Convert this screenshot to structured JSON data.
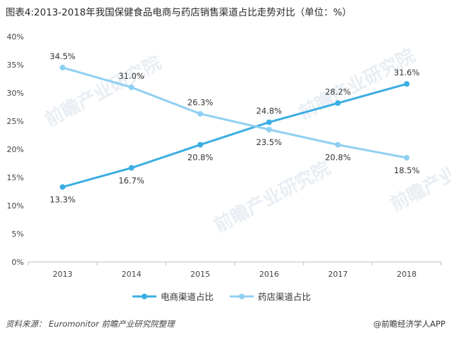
{
  "title": "图表4:2013-2018年我国保健食品电商与药店销售渠道占比走势对比（单位：%）",
  "source": "资料来源： Euromonitor  前瞻产业研究院整理",
  "brand": "@前瞻经济学人APP",
  "watermark": "前瞻产业研究院",
  "chart_data": {
    "type": "line",
    "categories": [
      "2013",
      "2014",
      "2015",
      "2016",
      "2017",
      "2018"
    ],
    "ylim": [
      0,
      40
    ],
    "yticks": [
      0,
      5,
      10,
      15,
      20,
      25,
      30,
      35,
      40
    ],
    "ytick_labels": [
      "0%",
      "5%",
      "10%",
      "15%",
      "20%",
      "25%",
      "30%",
      "35%",
      "40%"
    ],
    "grid": false,
    "legend_position": "bottom",
    "series": [
      {
        "name": "电商渠道占比",
        "color": "#3aaee2",
        "values": [
          13.3,
          16.7,
          20.8,
          24.8,
          28.2,
          31.6
        ],
        "labels": [
          "13.3%",
          "16.7%",
          "20.8%",
          "24.8%",
          "28.2%",
          "31.6%"
        ]
      },
      {
        "name": "药店渠道占比",
        "color": "#8fd0f2",
        "values": [
          34.5,
          31.0,
          26.3,
          23.5,
          20.8,
          18.5
        ],
        "labels": [
          "34.5%",
          "31.0%",
          "26.3%",
          "23.5%",
          "20.8%",
          "18.5%"
        ]
      }
    ]
  }
}
